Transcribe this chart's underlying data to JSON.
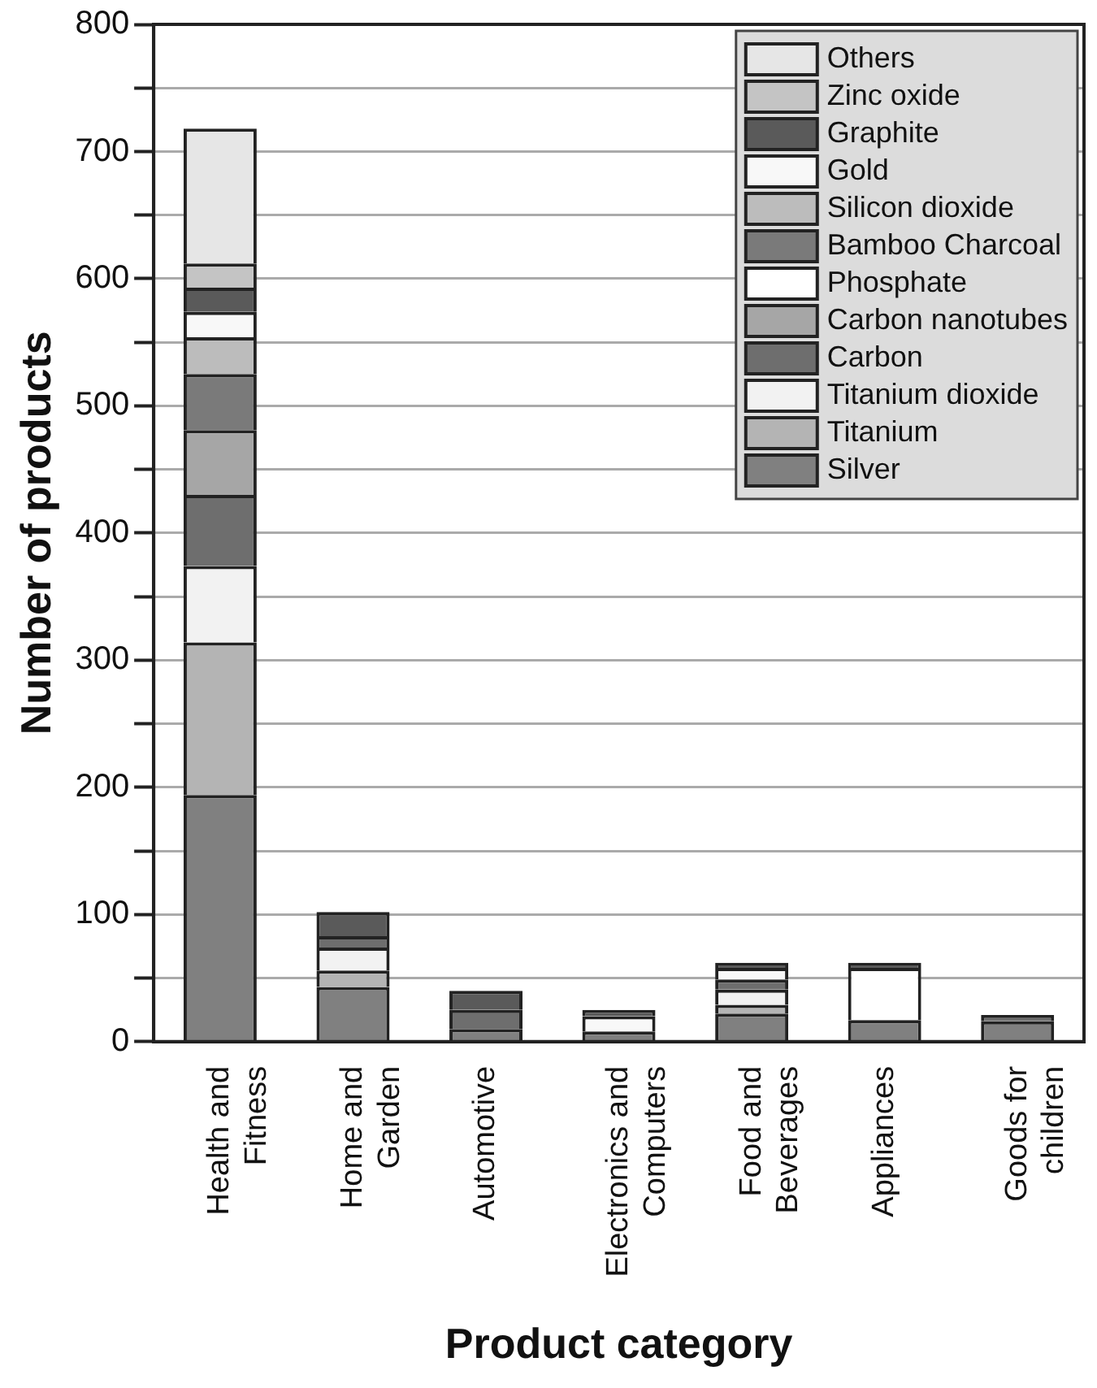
{
  "chart_data": {
    "type": "bar",
    "stacked": true,
    "xlabel": "Product category",
    "ylabel": "Number of products",
    "categories": [
      "Health and Fitness",
      "Home and Garden",
      "Automotive",
      "Electronics and Computers",
      "Food and Beverages",
      "Appliances",
      "Goods for children"
    ],
    "series": [
      {
        "name": "Silver",
        "color": "#808080",
        "values": [
          194,
          43,
          10,
          8,
          22,
          17,
          16
        ]
      },
      {
        "name": "Titanium",
        "color": "#b4b4b4",
        "values": [
          120,
          13,
          null,
          null,
          7,
          null,
          null
        ]
      },
      {
        "name": "Titanium dioxide",
        "color": "#f2f2f2",
        "values": [
          60,
          18,
          null,
          null,
          12,
          null,
          null
        ]
      },
      {
        "name": "Carbon",
        "color": "#6e6e6e",
        "values": [
          56,
          9,
          15,
          null,
          8,
          null,
          5
        ]
      },
      {
        "name": "Carbon nanotubes",
        "color": "#a6a6a6",
        "values": [
          51,
          null,
          null,
          null,
          null,
          null,
          null
        ]
      },
      {
        "name": "Phosphate",
        "color": "#ffffff",
        "values": [
          null,
          null,
          null,
          null,
          null,
          41,
          null
        ]
      },
      {
        "name": "Bamboo Charcoal",
        "color": "#7a7a7a",
        "values": [
          44,
          null,
          null,
          null,
          null,
          null,
          null
        ]
      },
      {
        "name": "Silicon dioxide",
        "color": "#bcbcbc",
        "values": [
          29,
          null,
          null,
          null,
          null,
          null,
          null
        ]
      },
      {
        "name": "Gold",
        "color": "#f8f8f8",
        "values": [
          20,
          null,
          null,
          12,
          9,
          null,
          null
        ]
      },
      {
        "name": "Graphite",
        "color": "#5a5a5a",
        "values": [
          19,
          19,
          15,
          5,
          4,
          4,
          null
        ]
      },
      {
        "name": "Zinc oxide",
        "color": "#c4c4c4",
        "values": [
          19,
          null,
          null,
          null,
          null,
          null,
          null
        ]
      },
      {
        "name": "Others",
        "color": "#e6e6e6",
        "values": [
          106,
          null,
          null,
          null,
          null,
          null,
          null
        ]
      }
    ],
    "ylim": [
      0,
      800
    ],
    "yticks": [
      0,
      {
        "value": 50,
        "label": null
      },
      100,
      {
        "value": 150,
        "label": null
      },
      200,
      {
        "value": 250,
        "label": null
      },
      300,
      {
        "value": 350,
        "label": null
      },
      400,
      {
        "value": 450,
        "label": null
      },
      500,
      {
        "value": 550,
        "label": null
      },
      600,
      {
        "value": 650,
        "label": null
      },
      700,
      {
        "value": 750,
        "label": null
      },
      800
    ],
    "grid": "y",
    "legend": "top right"
  }
}
